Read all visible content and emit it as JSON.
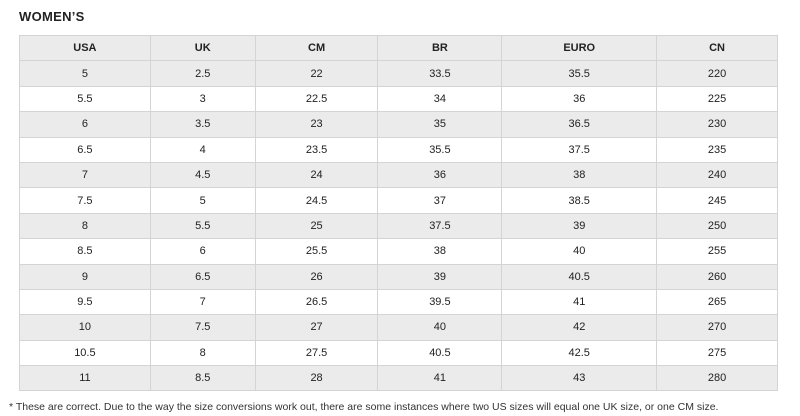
{
  "header": {
    "title": "WOMEN’S"
  },
  "table": {
    "columns": [
      "USA",
      "UK",
      "CM",
      "BR",
      "EURO",
      "CN"
    ],
    "rows": [
      [
        "5",
        "2.5",
        "22",
        "33.5",
        "35.5",
        "220"
      ],
      [
        "5.5",
        "3",
        "22.5",
        "34",
        "36",
        "225"
      ],
      [
        "6",
        "3.5",
        "23",
        "35",
        "36.5",
        "230"
      ],
      [
        "6.5",
        "4",
        "23.5",
        "35.5",
        "37.5",
        "235"
      ],
      [
        "7",
        "4.5",
        "24",
        "36",
        "38",
        "240"
      ],
      [
        "7.5",
        "5",
        "24.5",
        "37",
        "38.5",
        "245"
      ],
      [
        "8",
        "5.5",
        "25",
        "37.5",
        "39",
        "250"
      ],
      [
        "8.5",
        "6",
        "25.5",
        "38",
        "40",
        "255"
      ],
      [
        "9",
        "6.5",
        "26",
        "39",
        "40.5",
        "260"
      ],
      [
        "9.5",
        "7",
        "26.5",
        "39.5",
        "41",
        "265"
      ],
      [
        "10",
        "7.5",
        "27",
        "40",
        "42",
        "270"
      ],
      [
        "10.5",
        "8",
        "27.5",
        "40.5",
        "42.5",
        "275"
      ],
      [
        "11",
        "8.5",
        "28",
        "41",
        "43",
        "280"
      ]
    ]
  },
  "footnote": "* These are correct. Due to the way the size conversions work out, there are some instances where two US sizes will equal one UK size, or one CM size."
}
